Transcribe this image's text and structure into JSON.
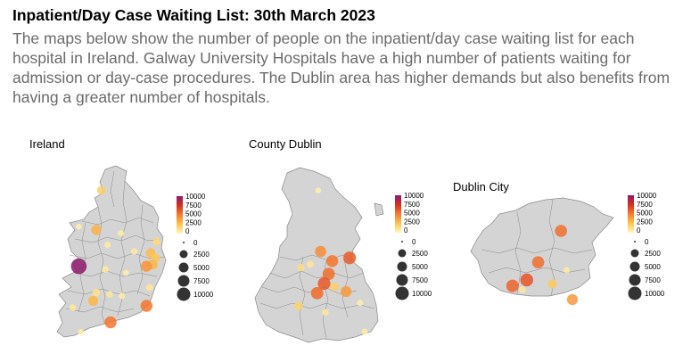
{
  "header": {
    "title": "Inpatient/Day Case Waiting List: 30th March 2023",
    "description": "The maps below show the number of people on the inpatient/day case waiting list for each hospital in Ireland. Galway University Hospitals have a high number of patients waiting for admission or day-case procedures. The Dublin area has higher demands but also benefits from having a greater number of hospitals."
  },
  "legend": {
    "color_ticks": [
      "10000",
      "7500",
      "5000",
      "2500",
      "0"
    ],
    "size_ticks": [
      "0",
      "2500",
      "5000",
      "7500",
      "10000"
    ],
    "color_range": [
      "#fff7bc",
      "#fec44f",
      "#f57c2e",
      "#d7301f",
      "#8c1a6a"
    ]
  },
  "panels": [
    {
      "name": "ireland",
      "label": "Ireland",
      "points": [
        {
          "x": 0.38,
          "y": 0.1,
          "value": 2000
        },
        {
          "x": 0.16,
          "y": 0.32,
          "value": 400
        },
        {
          "x": 0.33,
          "y": 0.34,
          "value": 3200
        },
        {
          "x": 0.57,
          "y": 0.36,
          "value": 500
        },
        {
          "x": 0.44,
          "y": 0.43,
          "value": 600
        },
        {
          "x": 0.92,
          "y": 0.41,
          "value": 1500
        },
        {
          "x": 0.7,
          "y": 0.47,
          "value": 700
        },
        {
          "x": 0.86,
          "y": 0.48,
          "value": 2800
        },
        {
          "x": 0.91,
          "y": 0.51,
          "value": 2300
        },
        {
          "x": 0.88,
          "y": 0.55,
          "value": 3000
        },
        {
          "x": 0.82,
          "y": 0.56,
          "value": 4200
        },
        {
          "x": 0.16,
          "y": 0.56,
          "value": 11000
        },
        {
          "x": 0.42,
          "y": 0.58,
          "value": 700
        },
        {
          "x": 0.62,
          "y": 0.6,
          "value": 400
        },
        {
          "x": 0.33,
          "y": 0.72,
          "value": 1200
        },
        {
          "x": 0.3,
          "y": 0.77,
          "value": 3000
        },
        {
          "x": 0.46,
          "y": 0.73,
          "value": 800
        },
        {
          "x": 0.58,
          "y": 0.74,
          "value": 500
        },
        {
          "x": 0.85,
          "y": 0.69,
          "value": 900
        },
        {
          "x": 0.82,
          "y": 0.8,
          "value": 5200
        },
        {
          "x": 0.47,
          "y": 0.9,
          "value": 5200
        },
        {
          "x": 0.18,
          "y": 0.96,
          "value": 400
        },
        {
          "x": 0.1,
          "y": 0.81,
          "value": 800
        }
      ]
    },
    {
      "name": "county-dublin",
      "label": "County Dublin",
      "points": [
        {
          "x": 0.5,
          "y": 0.12,
          "value": 400
        },
        {
          "x": 0.35,
          "y": 0.6,
          "value": 1300
        },
        {
          "x": 0.52,
          "y": 0.5,
          "value": 4400
        },
        {
          "x": 0.62,
          "y": 0.56,
          "value": 5200
        },
        {
          "x": 0.59,
          "y": 0.64,
          "value": 5500
        },
        {
          "x": 0.55,
          "y": 0.7,
          "value": 6200
        },
        {
          "x": 0.49,
          "y": 0.76,
          "value": 5600
        },
        {
          "x": 0.64,
          "y": 0.72,
          "value": 2000
        },
        {
          "x": 0.74,
          "y": 0.75,
          "value": 4000
        },
        {
          "x": 0.56,
          "y": 0.88,
          "value": 800
        },
        {
          "x": 0.77,
          "y": 0.54,
          "value": 6100
        },
        {
          "x": 0.33,
          "y": 0.84,
          "value": 1800
        },
        {
          "x": 0.43,
          "y": 0.58,
          "value": 900
        },
        {
          "x": 0.86,
          "y": 0.82,
          "value": 500
        },
        {
          "x": 0.9,
          "y": 1.0,
          "value": 500
        }
      ]
    },
    {
      "name": "dublin-city",
      "label": "Dublin City",
      "points": [
        {
          "x": 0.62,
          "y": 0.3,
          "value": 5400
        },
        {
          "x": 0.46,
          "y": 0.62,
          "value": 5500
        },
        {
          "x": 0.38,
          "y": 0.8,
          "value": 6300
        },
        {
          "x": 0.28,
          "y": 0.86,
          "value": 5800
        },
        {
          "x": 0.56,
          "y": 0.84,
          "value": 2200
        },
        {
          "x": 0.35,
          "y": 0.9,
          "value": 800
        },
        {
          "x": 0.66,
          "y": 0.7,
          "value": 600
        },
        {
          "x": 0.7,
          "y": 1.0,
          "value": 4000
        }
      ]
    }
  ]
}
